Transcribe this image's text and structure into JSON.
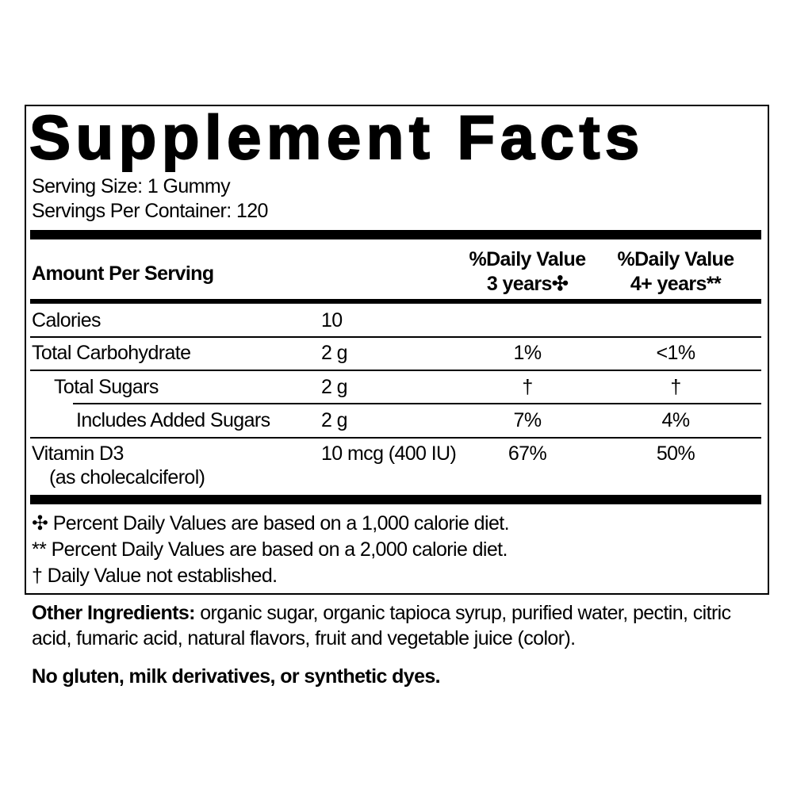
{
  "title": "Supplement Facts",
  "serving_size": "Serving Size: 1 Gummy",
  "servings_per_container": "Servings Per Container: 120",
  "header": {
    "amount_per_serving": "Amount Per Serving",
    "dv1_line1": "%Daily Value",
    "dv1_line2": "3 years✣",
    "dv2_line1": "%Daily Value",
    "dv2_line2": "4+ years**"
  },
  "rows": [
    {
      "name": "Calories",
      "amount": "10",
      "dv1": "",
      "dv2": ""
    },
    {
      "name": "Total Carbohydrate",
      "amount": "2 g",
      "dv1": "1%",
      "dv2": "<1%"
    },
    {
      "name": "Total Sugars",
      "amount": "2 g",
      "dv1": "†",
      "dv2": "†"
    },
    {
      "name": "Includes Added Sugars",
      "amount": "2 g",
      "dv1": "7%",
      "dv2": "4%"
    },
    {
      "name": "Vitamin D3",
      "subname": "(as cholecalciferol)",
      "amount": "10 mcg (400 IU)",
      "dv1": "67%",
      "dv2": "50%"
    }
  ],
  "footnotes": [
    "✣ Percent Daily Values are based on a 1,000 calorie diet.",
    "** Percent Daily Values are based on a 2,000 calorie diet.",
    "† Daily Value not established."
  ],
  "other_ingredients": {
    "label": "Other Ingredients:",
    "line1": " organic sugar, organic tapioca syrup, purified water, pectin, citric",
    "line2": "acid, fumaric acid, natural flavors, fruit and vegetable juice (color)."
  },
  "allergen_statement": "No gluten, milk derivatives, or synthetic dyes."
}
